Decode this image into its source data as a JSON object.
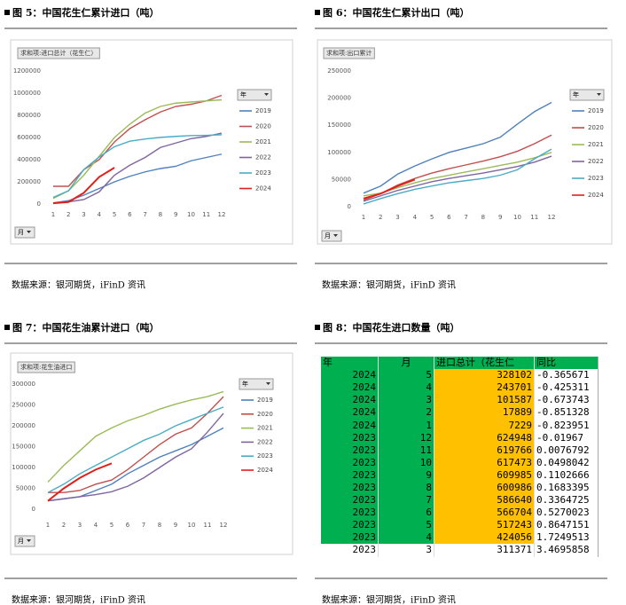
{
  "figures": [
    {
      "caption": "图 5：中国花生仁累计进口（吨）",
      "source": "数据来源：银河期货，iFinD 资讯"
    },
    {
      "caption": "图 6：中国花生仁累计出口（吨）",
      "source": "数据来源：银河期货，iFinD 资讯"
    },
    {
      "caption": "图 7：中国花生油累计进口（吨）",
      "source": "数据来源：银河期货，iFinD 资讯"
    },
    {
      "caption": "图 8：中国花生进口数量（吨）",
      "source": "数据来源：银河期货，iFinD 资讯"
    }
  ],
  "chart_data": [
    {
      "type": "line",
      "pivot_label": "求和项:进口总计（花生仁）",
      "legend_title": "年",
      "x_field": "月",
      "categories": [
        "1",
        "2",
        "3",
        "4",
        "5",
        "6",
        "7",
        "8",
        "9",
        "10",
        "11",
        "12"
      ],
      "ylim": [
        0,
        1200000
      ],
      "yticks": [
        0,
        200000,
        400000,
        600000,
        800000,
        1000000,
        1200000
      ],
      "grid": false,
      "series": [
        {
          "name": "2019",
          "color": "#4f81bd",
          "values": [
            10000,
            30000,
            80000,
            140000,
            200000,
            250000,
            290000,
            320000,
            340000,
            390000,
            420000,
            450000
          ]
        },
        {
          "name": "2020",
          "color": "#c0504d",
          "values": [
            160000,
            160000,
            310000,
            400000,
            560000,
            680000,
            760000,
            830000,
            880000,
            900000,
            930000,
            980000
          ]
        },
        {
          "name": "2021",
          "color": "#9bbb59",
          "values": [
            50000,
            120000,
            260000,
            430000,
            600000,
            720000,
            820000,
            880000,
            910000,
            920000,
            930000,
            940000
          ]
        },
        {
          "name": "2022",
          "color": "#8064a2",
          "values": [
            10000,
            20000,
            40000,
            110000,
            260000,
            350000,
            420000,
            510000,
            550000,
            590000,
            610000,
            640000
          ]
        },
        {
          "name": "2023",
          "color": "#4bacc6",
          "values": [
            60000,
            120000,
            311371,
            424056,
            517243,
            566704,
            586640,
            600986,
            609985,
            617473,
            619766,
            624948
          ]
        },
        {
          "name": "2024",
          "color": "#e0201b",
          "values": [
            7229,
            17889,
            101587,
            243701,
            328102,
            null,
            null,
            null,
            null,
            null,
            null,
            null
          ]
        }
      ]
    },
    {
      "type": "line",
      "pivot_label": "求和项:出口累计",
      "legend_title": "年",
      "x_field": "月",
      "categories": [
        "1",
        "2",
        "3",
        "4",
        "5",
        "6",
        "7",
        "8",
        "9",
        "10",
        "11",
        "12"
      ],
      "ylim": [
        0,
        250000
      ],
      "yticks": [
        0,
        50000,
        100000,
        150000,
        200000,
        250000
      ],
      "grid": false,
      "series": [
        {
          "name": "2019",
          "color": "#4f81bd",
          "values": [
            25000,
            38000,
            60000,
            75000,
            88000,
            100000,
            108000,
            116000,
            128000,
            152000,
            175000,
            192000
          ]
        },
        {
          "name": "2020",
          "color": "#c0504d",
          "values": [
            12000,
            24000,
            40000,
            52000,
            62000,
            70000,
            77000,
            84000,
            92000,
            102000,
            116000,
            132000
          ]
        },
        {
          "name": "2021",
          "color": "#9bbb59",
          "values": [
            20000,
            25000,
            35000,
            44000,
            52000,
            58000,
            64000,
            70000,
            76000,
            82000,
            90000,
            100000
          ]
        },
        {
          "name": "2022",
          "color": "#8064a2",
          "values": [
            10000,
            20000,
            30000,
            38000,
            46000,
            52000,
            57000,
            62000,
            68000,
            74000,
            82000,
            93000
          ]
        },
        {
          "name": "2023",
          "color": "#4bacc6",
          "values": [
            5000,
            15000,
            24000,
            32000,
            38000,
            44000,
            48000,
            52000,
            58000,
            68000,
            88000,
            106000
          ]
        },
        {
          "name": "2024",
          "color": "#e0201b",
          "values": [
            15000,
            24000,
            38000,
            50000,
            null,
            null,
            null,
            null,
            null,
            null,
            null,
            null
          ]
        }
      ]
    },
    {
      "type": "line",
      "pivot_label": "求和项:花生油进口",
      "legend_title": "年",
      "x_field": "月",
      "categories": [
        "1",
        "2",
        "3",
        "4",
        "5",
        "6",
        "7",
        "8",
        "9",
        "10",
        "11",
        "12"
      ],
      "ylim": [
        0,
        300000
      ],
      "yticks": [
        0,
        50000,
        100000,
        150000,
        200000,
        250000,
        300000
      ],
      "grid": false,
      "series": [
        {
          "name": "2019",
          "color": "#4f81bd",
          "values": [
            20000,
            25000,
            30000,
            45000,
            60000,
            85000,
            105000,
            125000,
            140000,
            155000,
            175000,
            195000
          ]
        },
        {
          "name": "2020",
          "color": "#c0504d",
          "values": [
            40000,
            40000,
            45000,
            60000,
            70000,
            95000,
            125000,
            155000,
            180000,
            195000,
            230000,
            270000
          ]
        },
        {
          "name": "2021",
          "color": "#9bbb59",
          "values": [
            65000,
            105000,
            140000,
            175000,
            195000,
            212000,
            225000,
            240000,
            252000,
            262000,
            270000,
            282000
          ]
        },
        {
          "name": "2022",
          "color": "#8064a2",
          "values": [
            20000,
            25000,
            30000,
            35000,
            42000,
            55000,
            75000,
            100000,
            125000,
            145000,
            185000,
            230000
          ]
        },
        {
          "name": "2023",
          "color": "#4bacc6",
          "values": [
            40000,
            60000,
            85000,
            105000,
            125000,
            145000,
            165000,
            180000,
            200000,
            215000,
            230000,
            245000
          ]
        },
        {
          "name": "2024",
          "color": "#e0201b",
          "values": [
            20000,
            50000,
            75000,
            95000,
            110000,
            null,
            null,
            null,
            null,
            null,
            null,
            null
          ]
        }
      ]
    }
  ],
  "table": {
    "header": [
      "年",
      "月",
      "进口总计（花生仁",
      "同比"
    ],
    "rows": [
      [
        "2024",
        "5",
        "328102",
        "-0.365671"
      ],
      [
        "2024",
        "4",
        "243701",
        "-0.425311"
      ],
      [
        "2024",
        "3",
        "101587",
        "-0.673743"
      ],
      [
        "2024",
        "2",
        "17889",
        "-0.851328"
      ],
      [
        "2024",
        "1",
        "7229",
        "-0.823951"
      ],
      [
        "2023",
        "12",
        "624948",
        "-0.01967"
      ],
      [
        "2023",
        "11",
        "619766",
        "0.0076792"
      ],
      [
        "2023",
        "10",
        "617473",
        "0.0498042"
      ],
      [
        "2023",
        "9",
        "609985",
        "0.1102666"
      ],
      [
        "2023",
        "8",
        "600986",
        "0.1683395"
      ],
      [
        "2023",
        "7",
        "586640",
        "0.3364725"
      ],
      [
        "2023",
        "6",
        "566704",
        "0.5270023"
      ],
      [
        "2023",
        "5",
        "517243",
        "0.8647151"
      ],
      [
        "2023",
        "4",
        "424056",
        "1.7249513"
      ],
      [
        "2023",
        "3",
        "311371",
        "3.4695858"
      ]
    ]
  }
}
